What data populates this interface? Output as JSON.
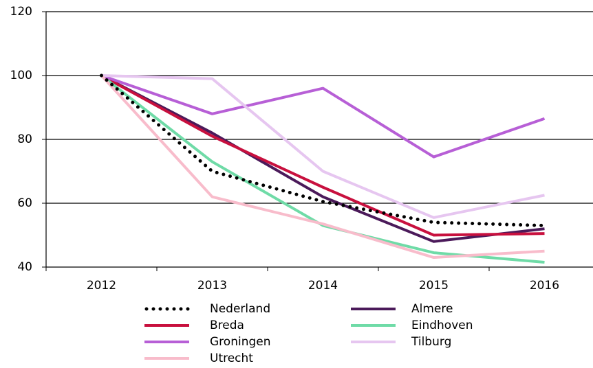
{
  "chart_data": {
    "type": "line",
    "categories": [
      "2012",
      "2013",
      "2014",
      "2015",
      "2016"
    ],
    "series": [
      {
        "name": "Nederland",
        "color": "#000000",
        "dotted": true,
        "values": [
          100,
          70,
          60.5,
          54,
          53
        ]
      },
      {
        "name": "Almere",
        "color": "#4b1a5a",
        "values": [
          100,
          82,
          62,
          48,
          52
        ]
      },
      {
        "name": "Breda",
        "color": "#c8103e",
        "values": [
          100,
          81,
          65,
          50,
          50.5
        ]
      },
      {
        "name": "Eindhoven",
        "color": "#6fdba7",
        "values": [
          100,
          73,
          53,
          44.5,
          41.5
        ]
      },
      {
        "name": "Groningen",
        "color": "#b75fd6",
        "values": [
          100,
          88,
          96,
          74.5,
          86.5
        ]
      },
      {
        "name": "Tilburg",
        "color": "#e6c6f0",
        "values": [
          100,
          99,
          70,
          55.5,
          62.5
        ]
      },
      {
        "name": "Utrecht",
        "color": "#f8bccb",
        "values": [
          100,
          62,
          53.5,
          43,
          45
        ]
      }
    ],
    "ylim": [
      40,
      120
    ],
    "yticks": [
      40,
      60,
      80,
      100,
      120
    ],
    "grid": true
  }
}
